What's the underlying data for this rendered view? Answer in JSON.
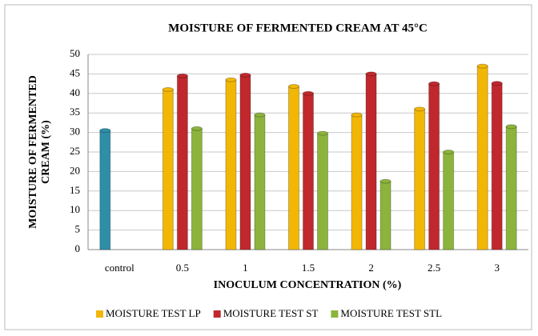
{
  "chart_data": {
    "type": "bar",
    "title": "MOISTURE OF FERMENTED CREAM  AT 45°C",
    "x_label": "INOCULUM CONCENTRATION (%)",
    "y_label": [
      "MOISTURE OF FERMENTED",
      "CREAM (%)"
    ],
    "categories": [
      "control",
      "0.5",
      "1",
      "1.5",
      "2",
      "2.5",
      "3"
    ],
    "series": [
      {
        "color": "#2e8ea8",
        "values": [
          30.5,
          null,
          null,
          null,
          null,
          null,
          null
        ]
      },
      {
        "name": "MOISTURE TEST LP",
        "color": "#f2b705",
        "values": [
          null,
          41,
          43.5,
          41.8,
          34.5,
          36,
          47
        ]
      },
      {
        "name": "MOISTURE TEST ST",
        "color": "#c0282d",
        "values": [
          null,
          44.5,
          44.7,
          40,
          45,
          42.5,
          42.6
        ]
      },
      {
        "name": "MOISTURE TEST STL",
        "color": "#8cb43c",
        "values": [
          null,
          31,
          34.5,
          29.8,
          17.5,
          25,
          31.5
        ]
      }
    ],
    "ylim": [
      0,
      50
    ],
    "yticks": [
      0,
      5,
      10,
      15,
      20,
      25,
      30,
      35,
      40,
      45,
      50
    ],
    "grid": true,
    "legend": "bottom"
  }
}
